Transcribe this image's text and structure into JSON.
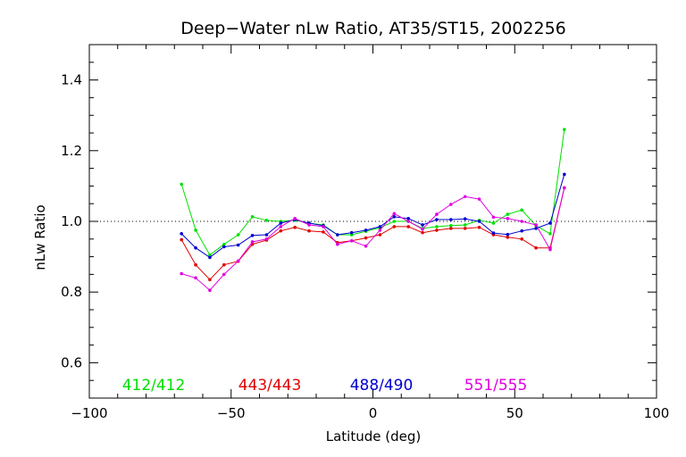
{
  "chart_data": {
    "type": "line",
    "title": "Deep−Water nLw Ratio, AT35/ST15, 2002256",
    "xlabel": "Latitude (deg)",
    "ylabel": "nLw Ratio",
    "xlim": [
      -100,
      100
    ],
    "ylim": [
      0.5,
      1.5
    ],
    "xticks": [
      -100,
      -50,
      0,
      50,
      100
    ],
    "xtick_labels": [
      "−100",
      "−50",
      "0",
      "50",
      "100"
    ],
    "yticks": [
      0.6,
      0.8,
      1.0,
      1.2,
      1.4
    ],
    "ytick_labels": [
      "0.6",
      "0.8",
      "1.0",
      "1.2",
      "1.4"
    ],
    "reference_line": 1.0,
    "grid": false,
    "legend_placement": "bottom inside plot",
    "x": [
      -67.5,
      -62.5,
      -57.5,
      -52.5,
      -47.5,
      -42.5,
      -37.5,
      -32.5,
      -27.5,
      -22.5,
      -17.5,
      -12.5,
      -7.5,
      -2.5,
      2.5,
      7.5,
      12.5,
      17.5,
      22.5,
      27.5,
      32.5,
      37.5,
      42.5,
      47.5,
      52.5,
      57.5,
      62.5,
      67.5
    ],
    "series": [
      {
        "name": "412/412",
        "color": "#00e000",
        "values": [
          1.105,
          0.975,
          0.905,
          0.935,
          0.962,
          1.013,
          1.003,
          1.0,
          1.003,
          0.995,
          0.99,
          0.962,
          0.962,
          0.972,
          0.982,
          1.0,
          1.0,
          0.98,
          0.985,
          0.988,
          0.99,
          1.003,
          0.995,
          1.02,
          1.032,
          0.988,
          0.965,
          1.26
        ]
      },
      {
        "name": "443/443",
        "color": "#e00000",
        "values": [
          0.948,
          0.877,
          0.835,
          0.877,
          0.887,
          0.935,
          0.947,
          0.973,
          0.983,
          0.973,
          0.97,
          0.94,
          0.945,
          0.953,
          0.962,
          0.985,
          0.985,
          0.968,
          0.975,
          0.98,
          0.98,
          0.983,
          0.962,
          0.955,
          0.95,
          0.925,
          0.925,
          1.095
        ]
      },
      {
        "name": "488/490",
        "color": "#0000d0",
        "values": [
          0.965,
          0.925,
          0.898,
          0.928,
          0.933,
          0.96,
          0.962,
          0.995,
          1.005,
          0.995,
          0.988,
          0.962,
          0.968,
          0.975,
          0.985,
          1.013,
          1.008,
          0.99,
          1.005,
          1.005,
          1.007,
          1.0,
          0.967,
          0.963,
          0.973,
          0.98,
          0.995,
          1.133
        ]
      },
      {
        "name": "551/555",
        "color": "#e000e0",
        "values": [
          0.852,
          0.84,
          0.805,
          0.85,
          0.888,
          0.942,
          0.95,
          0.985,
          1.008,
          0.99,
          0.985,
          0.935,
          0.945,
          0.93,
          0.975,
          1.022,
          1.0,
          0.978,
          1.02,
          1.048,
          1.07,
          1.063,
          1.012,
          1.008,
          1.0,
          0.99,
          0.92,
          1.095
        ]
      }
    ]
  }
}
